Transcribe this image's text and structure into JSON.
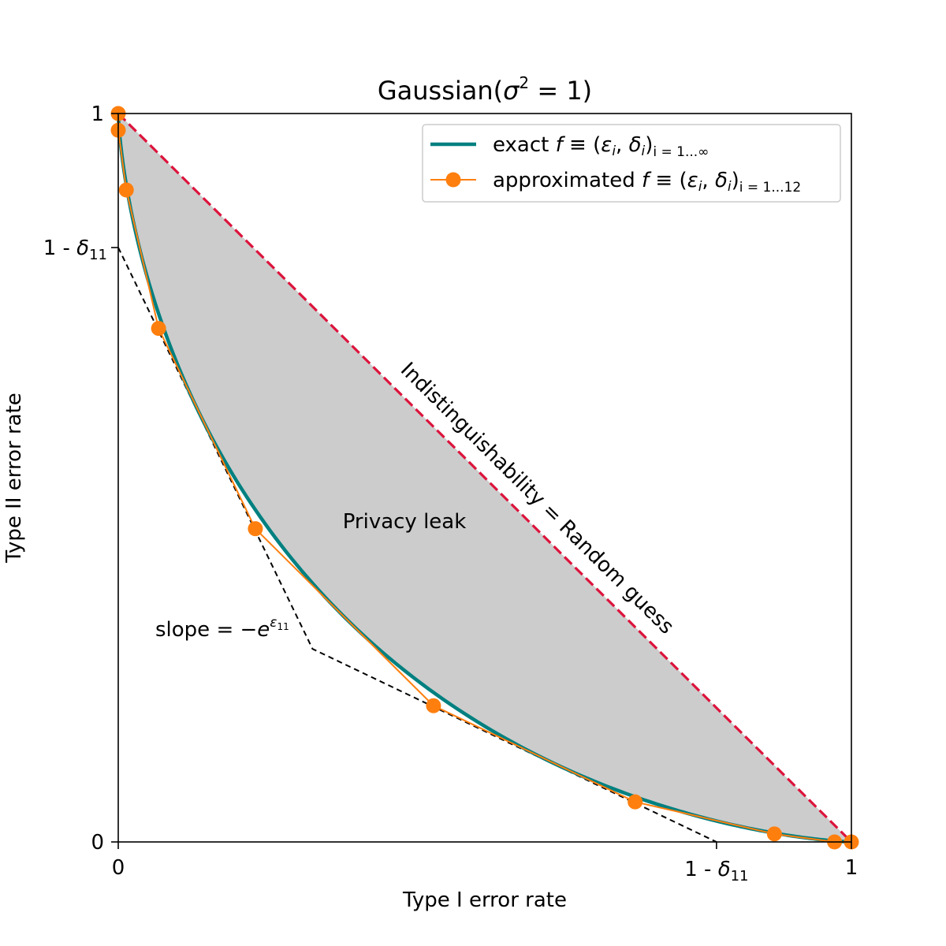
{
  "chart_data": {
    "type": "line",
    "title_main": "Gaussian(",
    "title_sigma": "σ",
    "title_sup": "2",
    "title_rest": " = 1)",
    "xlabel": "Type I error rate",
    "ylabel": "Type II error rate",
    "xlim": [
      0,
      1
    ],
    "ylim": [
      0,
      1
    ],
    "grid": false,
    "legend_position": "top-right",
    "xticks": [
      {
        "value": 0,
        "label": "0"
      },
      {
        "value": 1,
        "label": "1"
      }
    ],
    "x_delta_tick": {
      "value": 0.816,
      "prefix": "1 - ",
      "symbol": "δ",
      "sub": "11"
    },
    "yticks": [
      {
        "value": 0,
        "label": "0"
      },
      {
        "value": 1,
        "label": "1"
      }
    ],
    "y_delta_tick": {
      "value": 0.816,
      "prefix": "1 - ",
      "symbol": "δ",
      "sub": "11"
    },
    "series": [
      {
        "name": "exact",
        "legend_main": "exact ",
        "legend_f": "f",
        "legend_equiv": " ≡ (",
        "legend_eps": "ε",
        "legend_mid": ", ",
        "legend_delta": "δ",
        "legend_close": ")",
        "legend_sub": "i = 1...∞",
        "color": "#008080",
        "mu": 0.9996
      },
      {
        "name": "approximated",
        "legend_main": "approximated ",
        "legend_f": "f",
        "legend_equiv": " ≡ (",
        "legend_eps": "ε",
        "legend_mid": ", ",
        "legend_delta": "δ",
        "legend_close": ")",
        "legend_sub": "i = 1...12",
        "color": "#ff7f0e",
        "x": [
          0.0,
          0.0,
          0.011,
          0.055,
          0.187,
          0.43,
          0.705,
          0.895,
          0.977,
          1.0
        ],
        "y": [
          1.0,
          0.977,
          0.895,
          0.705,
          0.43,
          0.187,
          0.055,
          0.011,
          0.0,
          0.0
        ]
      }
    ],
    "random_guess": {
      "label": "Indistinguishability = Random guess",
      "color": "#dc143c",
      "x": [
        0,
        1
      ],
      "y": [
        1,
        0
      ]
    },
    "tangent_lines": {
      "color": "#000000",
      "x": [
        0.0,
        0.265,
        0.816
      ],
      "y": [
        0.816,
        0.265,
        0.0
      ]
    },
    "region": {
      "label": "Privacy leak",
      "color": "#cccccc"
    },
    "slope_annotation": {
      "prefix": "slope = −",
      "base": "e",
      "sup_eps": "ε",
      "sup_sub": "11"
    }
  }
}
